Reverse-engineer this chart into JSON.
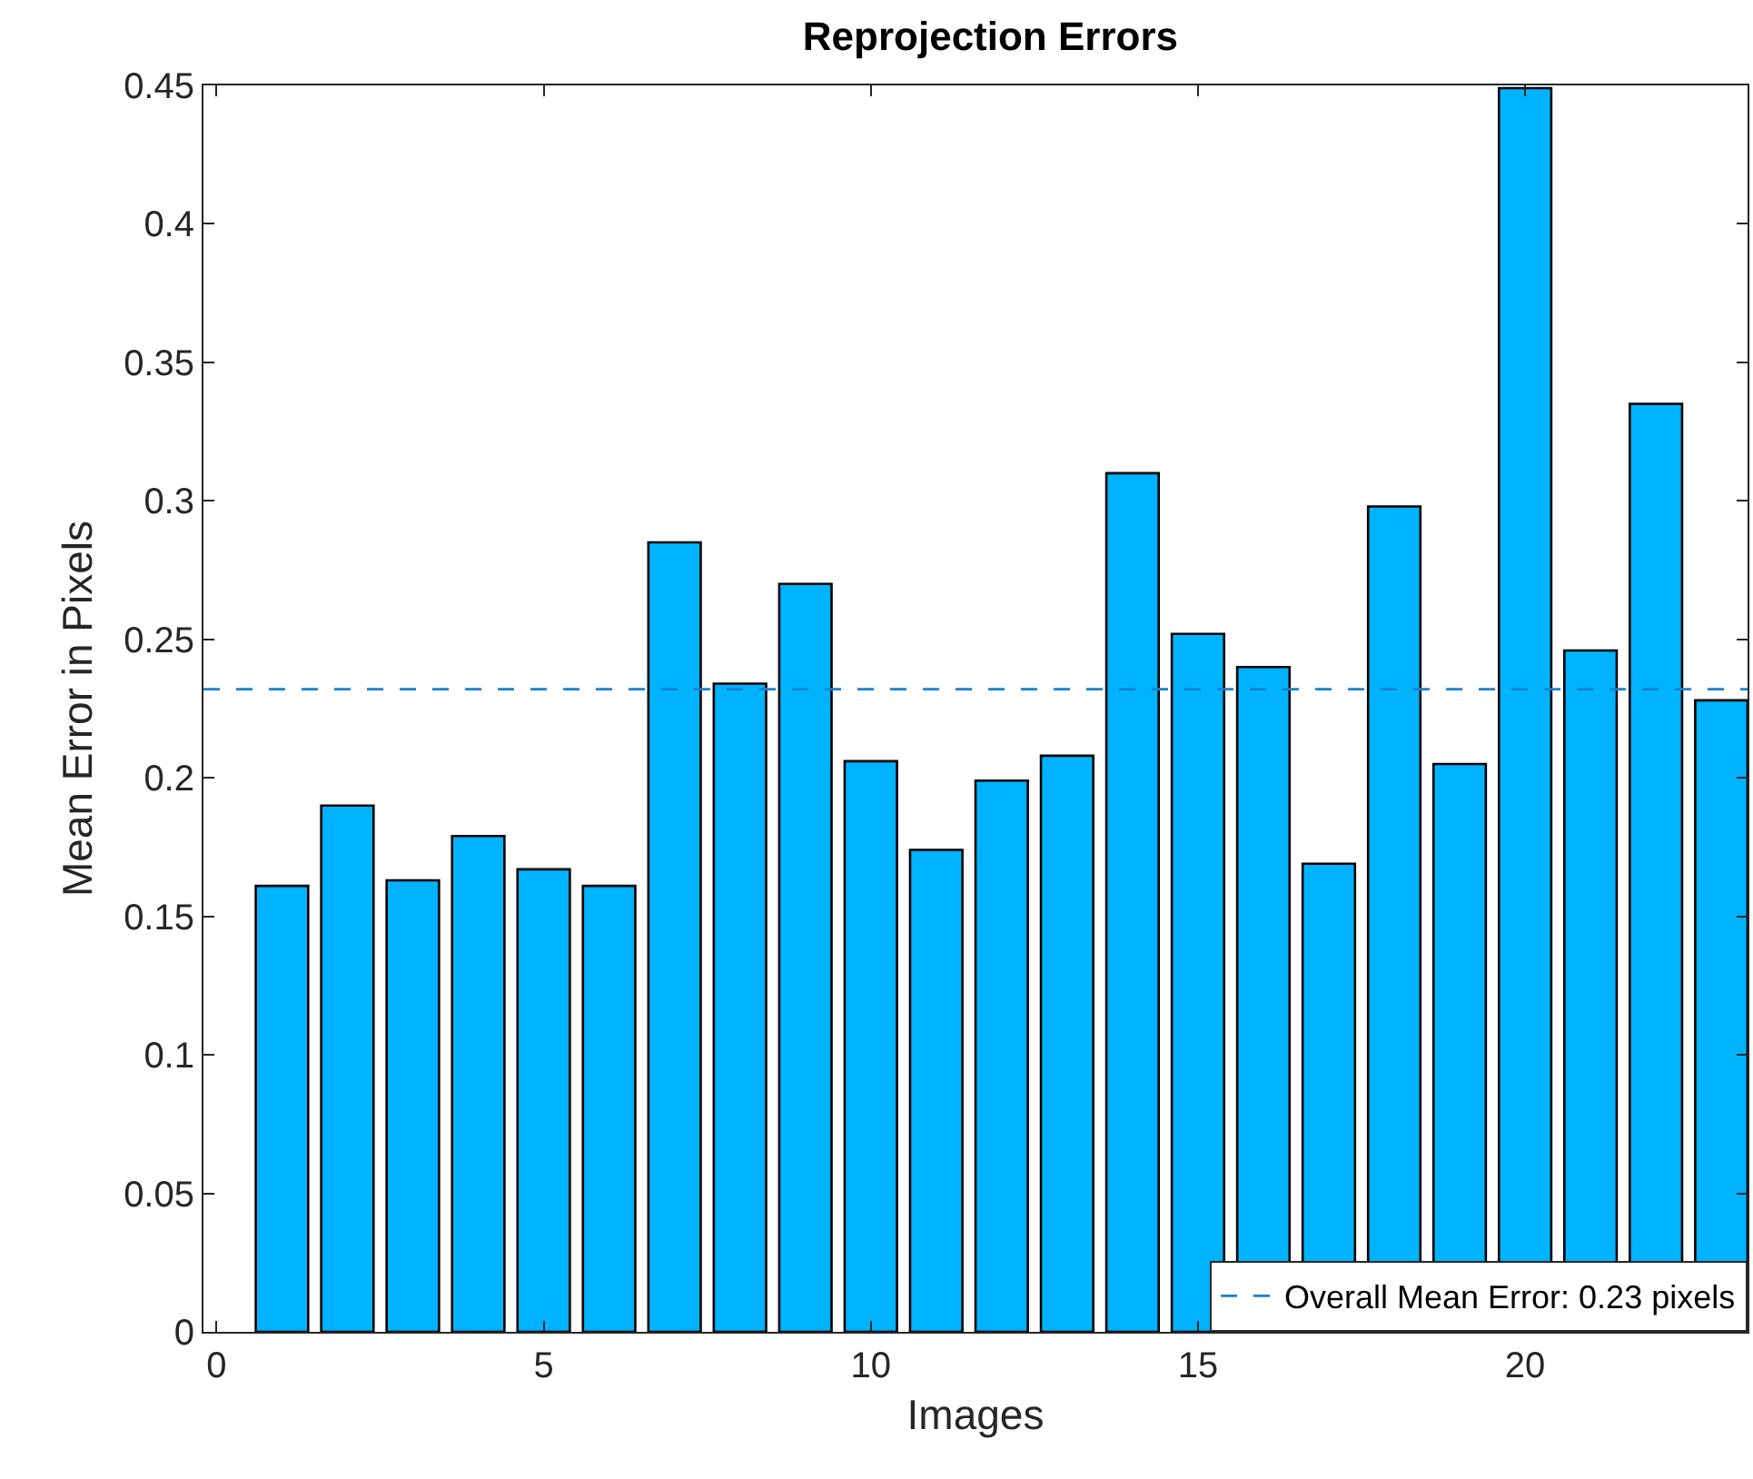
{
  "chart_data": {
    "type": "bar",
    "title": "Reprojection Errors",
    "xlabel": "Images",
    "ylabel": "Mean Error in Pixels",
    "x": [
      1,
      2,
      3,
      4,
      5,
      6,
      7,
      8,
      9,
      10,
      11,
      12,
      13,
      14,
      15,
      16,
      17,
      18,
      19,
      20,
      21,
      22,
      23
    ],
    "series": [
      {
        "color": "#00b3ff",
        "values": [
          0.161,
          0.19,
          0.163,
          0.179,
          0.167,
          0.161,
          0.285,
          0.234,
          0.27,
          0.206,
          0.174,
          0.199,
          0.208,
          0.31,
          0.252,
          0.24,
          0.169,
          0.298,
          0.205,
          0.449,
          0.246,
          0.335,
          0.228
        ]
      }
    ],
    "xlim": [
      -0.2,
      23.4
    ],
    "xticks": [
      0,
      5,
      10,
      15,
      20
    ],
    "ylim": [
      0,
      0.45
    ],
    "yticks": [
      0,
      0.05,
      0.1,
      0.15,
      0.2,
      0.25,
      0.3,
      0.35,
      0.4,
      0.45
    ],
    "ref_lines": [
      {
        "axis": "y",
        "value": 0.232,
        "label": "Overall Mean Error: 0.23 pixels",
        "color": "#1a80d0",
        "line_style": "dashed"
      }
    ],
    "legend": "bottom right"
  }
}
